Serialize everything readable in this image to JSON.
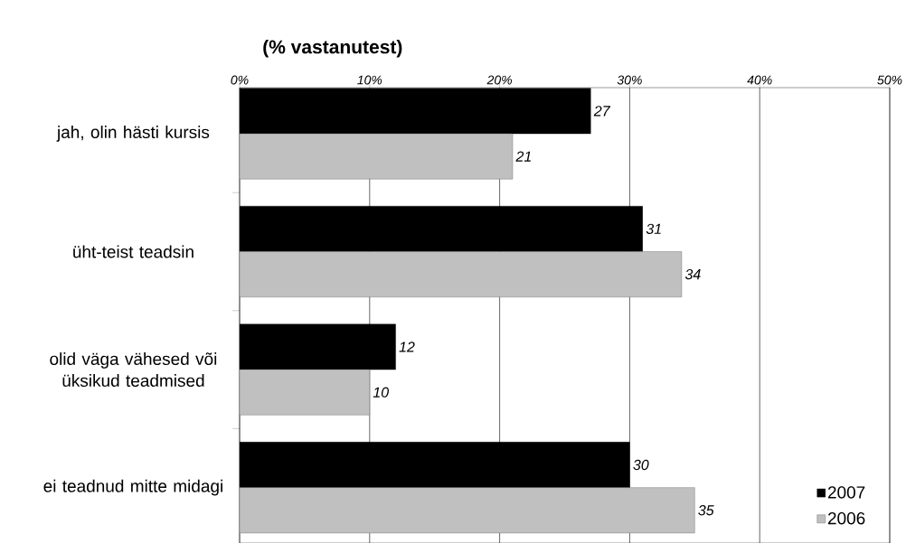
{
  "chart_data": {
    "type": "bar",
    "orientation": "horizontal",
    "title": "(% vastanutest)",
    "categories": [
      "jah, olin hästi kursis",
      "üht-teist teadsin",
      "olid väga vähesed või üksikud teadmised",
      "ei teadnud mitte midagi"
    ],
    "series": [
      {
        "name": "2007",
        "color": "#000000",
        "values": [
          27,
          31,
          12,
          30
        ]
      },
      {
        "name": "2006",
        "color": "#c0c0c0",
        "values": [
          21,
          34,
          10,
          35
        ]
      }
    ],
    "xlim": [
      0,
      50
    ],
    "xticks": [
      {
        "value": 0,
        "label": "0%"
      },
      {
        "value": 10,
        "label": "10%"
      },
      {
        "value": 20,
        "label": "20%"
      },
      {
        "value": 30,
        "label": "30%"
      },
      {
        "value": 40,
        "label": "40%"
      },
      {
        "value": 50,
        "label": "50%"
      }
    ],
    "grid": "x",
    "legend": "bottom right",
    "data_labels": true
  }
}
